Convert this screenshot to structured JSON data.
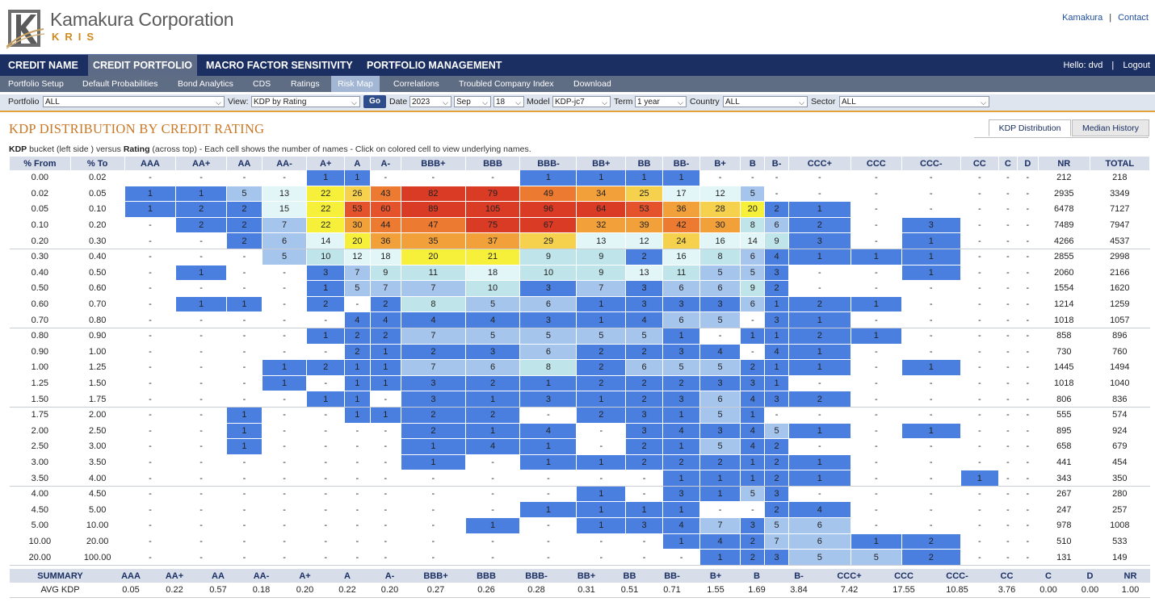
{
  "brand": {
    "name": "Kamakura Corporation",
    "product": "KRIS"
  },
  "top_links": [
    "Kamakura",
    "Contact"
  ],
  "main_nav": [
    {
      "label": "CREDIT NAME",
      "active": false
    },
    {
      "label": "CREDIT PORTFOLIO",
      "active": true
    },
    {
      "label": "MACRO FACTOR SENSITIVITY",
      "active": false
    },
    {
      "label": "PORTFOLIO MANAGEMENT",
      "active": false
    }
  ],
  "user": {
    "greeting": "Hello: dvd",
    "logout": "Logout"
  },
  "sub_nav": [
    {
      "label": "Portfolio Setup",
      "active": false
    },
    {
      "label": "Default Probabilities",
      "active": false
    },
    {
      "label": "Bond Analytics",
      "active": false
    },
    {
      "label": "CDS",
      "active": false
    },
    {
      "label": "Ratings",
      "active": false
    },
    {
      "label": "Risk Map",
      "active": true
    },
    {
      "label": "Correlations",
      "active": false
    },
    {
      "label": "Troubled Company Index",
      "active": false
    },
    {
      "label": "Download",
      "active": false
    }
  ],
  "filters": {
    "portfolio": {
      "label": "Portfolio",
      "value": "ALL"
    },
    "view": {
      "label": "View:",
      "value": "KDP by Rating"
    },
    "go": "Go",
    "date": {
      "label": "Date",
      "year": "2023",
      "month": "Sep",
      "day": "18"
    },
    "model": {
      "label": "Model",
      "value": "KDP-jc7"
    },
    "term": {
      "label": "Term",
      "value": "1 year"
    },
    "country": {
      "label": "Country",
      "value": "ALL"
    },
    "sector": {
      "label": "Sector",
      "value": "ALL"
    }
  },
  "page_title": "KDP DISTRIBUTION BY CREDIT RATING",
  "tabs": [
    {
      "label": "KDP Distribution",
      "active": true
    },
    {
      "label": "Median History",
      "active": false
    }
  ],
  "description": {
    "b1": "KDP",
    "t1": " bucket (left side ) versus ",
    "b2": "Rating",
    "t2": " (across top) - Each cell shows the number of names - Click on colored cell to view underlying names."
  },
  "colors": {
    "blue": "#4a7fe0",
    "lightblue": "#a6c5ec",
    "paleblue": "#bfe5ea",
    "verypale": "#e2f6f8",
    "yellow": "#f6f03a",
    "amber": "#f5d14e",
    "orange": "#f2a03a",
    "deeporange": "#ec7a30",
    "red": "#e5532c",
    "darkred": "#d93b25"
  },
  "grid": {
    "columns": [
      "% From",
      "% To",
      "AAA",
      "AA+",
      "AA",
      "AA-",
      "A+",
      "A",
      "A-",
      "BBB+",
      "BBB",
      "BBB-",
      "BB+",
      "BB",
      "BB-",
      "B+",
      "B",
      "B-",
      "CCC+",
      "CCC",
      "CCC-",
      "CC",
      "C",
      "D",
      "NR",
      "TOTAL"
    ],
    "rows": [
      [
        "0.00",
        "0.02",
        "-",
        "-",
        "-",
        "-",
        "1",
        "1",
        "-",
        "-",
        "-",
        "1",
        "1",
        "1",
        "1",
        "-",
        "-",
        "-",
        "-",
        "-",
        "-",
        "-",
        "-",
        "-",
        "212",
        "218"
      ],
      [
        "0.02",
        "0.05",
        "1",
        "1",
        "5",
        "13",
        "22",
        "26",
        "43",
        "82",
        "79",
        "49",
        "34",
        "25",
        "17",
        "12",
        "5",
        "-",
        "-",
        "-",
        "-",
        "-",
        "-",
        "-",
        "2935",
        "3349"
      ],
      [
        "0.05",
        "0.10",
        "1",
        "2",
        "2",
        "15",
        "22",
        "53",
        "60",
        "89",
        "105",
        "96",
        "64",
        "53",
        "36",
        "28",
        "20",
        "2",
        "1",
        "-",
        "-",
        "-",
        "-",
        "-",
        "6478",
        "7127"
      ],
      [
        "0.10",
        "0.20",
        "-",
        "2",
        "2",
        "7",
        "22",
        "30",
        "44",
        "47",
        "75",
        "67",
        "32",
        "39",
        "42",
        "30",
        "8",
        "6",
        "2",
        "-",
        "3",
        "-",
        "-",
        "-",
        "7489",
        "7947"
      ],
      [
        "0.20",
        "0.30",
        "-",
        "-",
        "2",
        "6",
        "14",
        "20",
        "36",
        "35",
        "37",
        "29",
        "13",
        "12",
        "24",
        "16",
        "14",
        "9",
        "3",
        "-",
        "1",
        "-",
        "-",
        "-",
        "4266",
        "4537"
      ],
      [
        "0.30",
        "0.40",
        "-",
        "-",
        "-",
        "5",
        "10",
        "12",
        "18",
        "20",
        "21",
        "9",
        "9",
        "2",
        "16",
        "8",
        "6",
        "4",
        "1",
        "1",
        "1",
        "-",
        "-",
        "-",
        "2855",
        "2998"
      ],
      [
        "0.40",
        "0.50",
        "-",
        "1",
        "-",
        "-",
        "3",
        "7",
        "9",
        "11",
        "18",
        "10",
        "9",
        "13",
        "11",
        "5",
        "5",
        "3",
        "-",
        "-",
        "1",
        "-",
        "-",
        "-",
        "2060",
        "2166"
      ],
      [
        "0.50",
        "0.60",
        "-",
        "-",
        "-",
        "-",
        "1",
        "5",
        "7",
        "7",
        "10",
        "3",
        "7",
        "3",
        "6",
        "6",
        "9",
        "2",
        "-",
        "-",
        "-",
        "-",
        "-",
        "-",
        "1554",
        "1620"
      ],
      [
        "0.60",
        "0.70",
        "-",
        "1",
        "1",
        "-",
        "2",
        "-",
        "2",
        "8",
        "5",
        "6",
        "1",
        "3",
        "3",
        "3",
        "6",
        "1",
        "2",
        "1",
        "-",
        "-",
        "-",
        "-",
        "1214",
        "1259"
      ],
      [
        "0.70",
        "0.80",
        "-",
        "-",
        "-",
        "-",
        "-",
        "4",
        "4",
        "4",
        "4",
        "3",
        "1",
        "4",
        "6",
        "5",
        "-",
        "3",
        "1",
        "-",
        "-",
        "-",
        "-",
        "-",
        "1018",
        "1057"
      ],
      [
        "0.80",
        "0.90",
        "-",
        "-",
        "-",
        "-",
        "1",
        "2",
        "2",
        "7",
        "5",
        "5",
        "5",
        "5",
        "1",
        "-",
        "1",
        "1",
        "2",
        "1",
        "-",
        "-",
        "-",
        "-",
        "858",
        "896"
      ],
      [
        "0.90",
        "1.00",
        "-",
        "-",
        "-",
        "-",
        "-",
        "2",
        "1",
        "2",
        "3",
        "6",
        "2",
        "2",
        "3",
        "4",
        "-",
        "4",
        "1",
        "-",
        "-",
        "-",
        "-",
        "-",
        "730",
        "760"
      ],
      [
        "1.00",
        "1.25",
        "-",
        "-",
        "-",
        "1",
        "2",
        "1",
        "1",
        "7",
        "6",
        "8",
        "2",
        "6",
        "5",
        "5",
        "2",
        "1",
        "1",
        "-",
        "1",
        "-",
        "-",
        "-",
        "1445",
        "1494"
      ],
      [
        "1.25",
        "1.50",
        "-",
        "-",
        "-",
        "1",
        "-",
        "1",
        "1",
        "3",
        "2",
        "1",
        "2",
        "2",
        "2",
        "3",
        "3",
        "1",
        "-",
        "-",
        "-",
        "-",
        "-",
        "-",
        "1018",
        "1040"
      ],
      [
        "1.50",
        "1.75",
        "-",
        "-",
        "-",
        "-",
        "1",
        "1",
        "-",
        "3",
        "1",
        "3",
        "1",
        "2",
        "3",
        "6",
        "4",
        "3",
        "2",
        "-",
        "-",
        "-",
        "-",
        "-",
        "806",
        "836"
      ],
      [
        "1.75",
        "2.00",
        "-",
        "-",
        "1",
        "-",
        "-",
        "1",
        "1",
        "2",
        "2",
        "-",
        "2",
        "3",
        "1",
        "5",
        "1",
        "-",
        "-",
        "-",
        "-",
        "-",
        "-",
        "-",
        "555",
        "574"
      ],
      [
        "2.00",
        "2.50",
        "-",
        "-",
        "1",
        "-",
        "-",
        "-",
        "-",
        "2",
        "1",
        "4",
        "-",
        "3",
        "4",
        "3",
        "4",
        "5",
        "1",
        "-",
        "1",
        "-",
        "-",
        "-",
        "895",
        "924"
      ],
      [
        "2.50",
        "3.00",
        "-",
        "-",
        "1",
        "-",
        "-",
        "-",
        "-",
        "1",
        "4",
        "1",
        "-",
        "2",
        "1",
        "5",
        "4",
        "2",
        "-",
        "-",
        "-",
        "-",
        "-",
        "-",
        "658",
        "679"
      ],
      [
        "3.00",
        "3.50",
        "-",
        "-",
        "-",
        "-",
        "-",
        "-",
        "-",
        "1",
        "-",
        "1",
        "1",
        "2",
        "2",
        "2",
        "1",
        "2",
        "1",
        "-",
        "-",
        "-",
        "-",
        "-",
        "441",
        "454"
      ],
      [
        "3.50",
        "4.00",
        "-",
        "-",
        "-",
        "-",
        "-",
        "-",
        "-",
        "-",
        "-",
        "-",
        "-",
        "-",
        "1",
        "1",
        "1",
        "2",
        "1",
        "-",
        "-",
        "1",
        "-",
        "-",
        "343",
        "350"
      ],
      [
        "4.00",
        "4.50",
        "-",
        "-",
        "-",
        "-",
        "-",
        "-",
        "-",
        "-",
        "-",
        "-",
        "1",
        "-",
        "3",
        "1",
        "5",
        "3",
        "-",
        "-",
        "-",
        "-",
        "-",
        "-",
        "267",
        "280"
      ],
      [
        "4.50",
        "5.00",
        "-",
        "-",
        "-",
        "-",
        "-",
        "-",
        "-",
        "-",
        "-",
        "1",
        "1",
        "1",
        "1",
        "-",
        "-",
        "2",
        "4",
        "-",
        "-",
        "-",
        "-",
        "-",
        "247",
        "257"
      ],
      [
        "5.00",
        "10.00",
        "-",
        "-",
        "-",
        "-",
        "-",
        "-",
        "-",
        "-",
        "1",
        "-",
        "1",
        "3",
        "4",
        "7",
        "3",
        "5",
        "6",
        "-",
        "-",
        "-",
        "-",
        "-",
        "978",
        "1008"
      ],
      [
        "10.00",
        "20.00",
        "-",
        "-",
        "-",
        "-",
        "-",
        "-",
        "-",
        "-",
        "-",
        "-",
        "-",
        "-",
        "1",
        "4",
        "2",
        "7",
        "6",
        "1",
        "2",
        "-",
        "-",
        "-",
        "510",
        "533"
      ],
      [
        "20.00",
        "100.00",
        "-",
        "-",
        "-",
        "-",
        "-",
        "-",
        "-",
        "-",
        "-",
        "-",
        "-",
        "-",
        "-",
        "1",
        "2",
        "3",
        "5",
        "5",
        "2",
        "-",
        "-",
        "-",
        "131",
        "149"
      ]
    ]
  },
  "summary": {
    "columns": [
      "SUMMARY",
      "AAA",
      "AA+",
      "AA",
      "AA-",
      "A+",
      "A",
      "A-",
      "BBB+",
      "BBB",
      "BBB-",
      "BB+",
      "BB",
      "BB-",
      "B+",
      "B",
      "B-",
      "CCC+",
      "CCC",
      "CCC-",
      "CC",
      "C",
      "D",
      "NR"
    ],
    "rows": [
      [
        "AVG KDP",
        "0.05",
        "0.22",
        "0.57",
        "0.18",
        "0.20",
        "0.22",
        "0.20",
        "0.27",
        "0.26",
        "0.28",
        "0.31",
        "0.51",
        "0.71",
        "1.55",
        "1.69",
        "3.84",
        "7.42",
        "17.55",
        "10.85",
        "3.76",
        "0.00",
        "0.00",
        "1.00"
      ]
    ]
  }
}
